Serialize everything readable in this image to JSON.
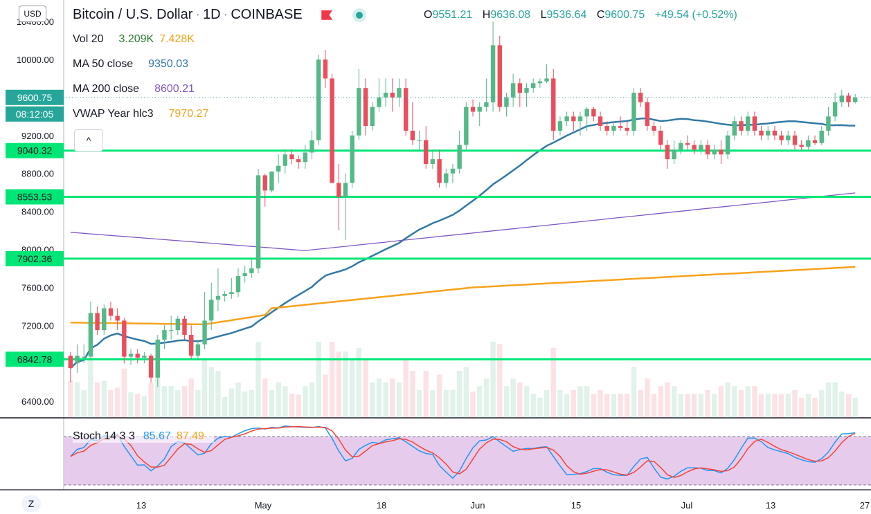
{
  "header": {
    "symbol_name": "Bitcoin / U.S. Dollar",
    "interval": "1D",
    "exchange": "COINBASE",
    "currency_button": "USD",
    "ohlc": {
      "o_label": "O",
      "o": "9551.21",
      "h_label": "H",
      "h": "9636.08",
      "l_label": "L",
      "l": "9536.64",
      "c_label": "C",
      "c": "9600.75",
      "change": "+49.54 (+0.52%)"
    }
  },
  "legend": {
    "vol": {
      "label": "Vol 20",
      "v1": "3.209K",
      "v2": "7.428K"
    },
    "ma50": {
      "label": "MA 50 close",
      "value": "9350.03"
    },
    "ma200": {
      "label": "MA 200 close",
      "value": "8600.21"
    },
    "vwap": {
      "label": "VWAP Year hlc3",
      "value": "7970.27"
    },
    "stoch": {
      "label": "Stoch 14 3 3",
      "k": "85.67",
      "d": "87.49"
    }
  },
  "price_axis": {
    "ticks": [
      "10400.00",
      "10000.00",
      "9600.00",
      "9200.00",
      "8800.00",
      "8400.00",
      "8000.00",
      "7600.00",
      "7200.00",
      "6800.00",
      "6400.00"
    ],
    "badges": {
      "last_price": "9600.75",
      "countdown": "08:12:05",
      "h1": "9040.32",
      "h2": "8553.53",
      "h3": "7902.36",
      "h4": "6842.78"
    }
  },
  "time_axis": {
    "labels": [
      "13",
      "May",
      "18",
      "Jun",
      "15",
      "Jul",
      "13",
      "27"
    ]
  },
  "buttons": {
    "collapse": "^",
    "zoom": "Z"
  },
  "colors": {
    "up": "#26a69a",
    "up_candle": "#53b987",
    "down": "#eb4d5c",
    "ma50": "#3179a5",
    "ma200": "#7e57c2",
    "vwap": "#f7a21b",
    "hline": "#00e676",
    "stoch_k": "#2196f3",
    "stoch_d": "#f44336",
    "stoch_band": "#e1bee7"
  },
  "chart_data": {
    "type": "candlestick",
    "title": "Bitcoin / U.S. Dollar",
    "interval": "1D",
    "ylim": [
      6300,
      10450
    ],
    "horizontal_levels": [
      9040.32,
      8553.53,
      7902.36,
      6842.78
    ],
    "candles": [
      [
        6880,
        6920,
        6600,
        6750
      ],
      [
        6800,
        7000,
        6700,
        6880
      ],
      [
        6860,
        7000,
        6800,
        6870
      ],
      [
        6870,
        7450,
        6830,
        7330
      ],
      [
        7330,
        7400,
        7100,
        7150
      ],
      [
        7150,
        7420,
        7100,
        7380
      ],
      [
        7380,
        7450,
        7250,
        7300
      ],
      [
        7300,
        7380,
        7150,
        7250
      ],
      [
        7250,
        7280,
        6800,
        6870
      ],
      [
        6870,
        6950,
        6780,
        6900
      ],
      [
        6900,
        6950,
        6800,
        6860
      ],
      [
        6860,
        6920,
        6800,
        6880
      ],
      [
        6880,
        6900,
        6600,
        6650
      ],
      [
        6650,
        7100,
        6550,
        7050
      ],
      [
        7050,
        7200,
        6950,
        7150
      ],
      [
        7150,
        7300,
        7050,
        7150
      ],
      [
        7150,
        7300,
        7100,
        7270
      ],
      [
        7270,
        7300,
        7050,
        7100
      ],
      [
        7100,
        7200,
        6850,
        6880
      ],
      [
        6880,
        7050,
        6850,
        7000
      ],
      [
        7000,
        7550,
        6950,
        7250
      ],
      [
        7250,
        7650,
        7150,
        7470
      ],
      [
        7470,
        7800,
        7350,
        7510
      ],
      [
        7510,
        7560,
        7450,
        7530
      ],
      [
        7530,
        7700,
        7480,
        7550
      ],
      [
        7550,
        7800,
        7500,
        7720
      ],
      [
        7720,
        7830,
        7650,
        7750
      ],
      [
        7750,
        7900,
        7700,
        7800
      ],
      [
        7800,
        8850,
        7750,
        8780
      ],
      [
        8780,
        8800,
        8450,
        8620
      ],
      [
        8620,
        8800,
        8600,
        8820
      ],
      [
        8820,
        9000,
        8700,
        8880
      ],
      [
        8880,
        9050,
        8800,
        9000
      ],
      [
        9000,
        9050,
        8900,
        8950
      ],
      [
        8950,
        8990,
        8850,
        8920
      ],
      [
        8920,
        9100,
        8850,
        9020
      ],
      [
        9020,
        9250,
        8950,
        9150
      ],
      [
        9150,
        10050,
        9100,
        10000
      ],
      [
        10000,
        10100,
        9700,
        9800
      ],
      [
        9800,
        9850,
        8700,
        8700
      ],
      [
        8700,
        8900,
        8200,
        8550
      ],
      [
        8550,
        8800,
        8100,
        8700
      ],
      [
        8700,
        9250,
        8650,
        9200
      ],
      [
        9200,
        9900,
        9150,
        9700
      ],
      [
        9700,
        9800,
        9200,
        9300
      ],
      [
        9300,
        9550,
        9250,
        9500
      ],
      [
        9500,
        9800,
        9450,
        9600
      ],
      [
        9600,
        9800,
        9500,
        9650
      ],
      [
        9650,
        9800,
        9450,
        9600
      ],
      [
        9600,
        9800,
        9500,
        9700
      ],
      [
        9700,
        9800,
        9200,
        9250
      ],
      [
        9250,
        9550,
        9100,
        9150
      ],
      [
        9150,
        9250,
        9050,
        9150
      ],
      [
        9150,
        9300,
        8850,
        8900
      ],
      [
        8900,
        9050,
        8850,
        8950
      ],
      [
        8950,
        9050,
        8650,
        8700
      ],
      [
        8700,
        8850,
        8650,
        8800
      ],
      [
        8800,
        8900,
        8700,
        8850
      ],
      [
        8850,
        9250,
        8800,
        9100
      ],
      [
        9100,
        9550,
        9050,
        9500
      ],
      [
        9500,
        9580,
        9400,
        9450
      ],
      [
        9450,
        9550,
        9300,
        9500
      ],
      [
        9500,
        9800,
        9450,
        9550
      ],
      [
        9550,
        10400,
        9450,
        10150
      ],
      [
        10150,
        10250,
        9450,
        9500
      ],
      [
        9500,
        9650,
        9400,
        9600
      ],
      [
        9600,
        9850,
        9500,
        9750
      ],
      [
        9750,
        9800,
        9500,
        9650
      ],
      [
        9650,
        9750,
        9500,
        9700
      ],
      [
        9700,
        9800,
        9650,
        9750
      ],
      [
        9750,
        9800,
        9700,
        9770
      ],
      [
        9770,
        9950,
        9750,
        9800
      ],
      [
        9800,
        9900,
        9150,
        9250
      ],
      [
        9250,
        9400,
        9200,
        9350
      ],
      [
        9350,
        9450,
        9300,
        9400
      ],
      [
        9400,
        9450,
        9250,
        9350
      ],
      [
        9350,
        9450,
        9200,
        9400
      ],
      [
        9400,
        9500,
        9250,
        9480
      ],
      [
        9480,
        9500,
        9350,
        9400
      ],
      [
        9400,
        9450,
        9250,
        9300
      ],
      [
        9300,
        9350,
        9200,
        9250
      ],
      [
        9250,
        9350,
        9200,
        9300
      ],
      [
        9300,
        9400,
        9250,
        9280
      ],
      [
        9280,
        9350,
        9200,
        9250
      ],
      [
        9250,
        9700,
        9200,
        9650
      ],
      [
        9650,
        9700,
        9500,
        9550
      ],
      [
        9550,
        9600,
        9250,
        9300
      ],
      [
        9300,
        9350,
        9200,
        9250
      ],
      [
        9250,
        9300,
        9050,
        9100
      ],
      [
        9100,
        9150,
        8850,
        8950
      ],
      [
        8950,
        9150,
        8900,
        9050
      ],
      [
        9050,
        9150,
        9000,
        9120
      ],
      [
        9120,
        9200,
        9050,
        9100
      ],
      [
        9100,
        9150,
        9000,
        9050
      ],
      [
        9050,
        9150,
        9000,
        9100
      ],
      [
        9100,
        9150,
        8950,
        9000
      ],
      [
        9000,
        9100,
        8950,
        9050
      ],
      [
        9050,
        9150,
        8900,
        9000
      ],
      [
        9000,
        9250,
        8950,
        9200
      ],
      [
        9200,
        9400,
        9150,
        9350
      ],
      [
        9350,
        9400,
        9200,
        9250
      ],
      [
        9250,
        9450,
        9200,
        9400
      ],
      [
        9400,
        9450,
        9200,
        9250
      ],
      [
        9250,
        9300,
        9150,
        9200
      ],
      [
        9200,
        9300,
        9150,
        9250
      ],
      [
        9250,
        9300,
        9150,
        9200
      ],
      [
        9200,
        9250,
        9100,
        9150
      ],
      [
        9150,
        9250,
        9100,
        9200
      ],
      [
        9200,
        9250,
        9050,
        9100
      ],
      [
        9100,
        9150,
        9050,
        9080
      ],
      [
        9080,
        9200,
        9050,
        9150
      ],
      [
        9150,
        9200,
        9100,
        9120
      ],
      [
        9120,
        9300,
        9100,
        9250
      ],
      [
        9250,
        9500,
        9200,
        9400
      ],
      [
        9400,
        9650,
        9350,
        9550
      ],
      [
        9550,
        9680,
        9500,
        9620
      ],
      [
        9620,
        9650,
        9500,
        9550
      ],
      [
        9551,
        9636,
        9536,
        9600
      ]
    ]
  }
}
